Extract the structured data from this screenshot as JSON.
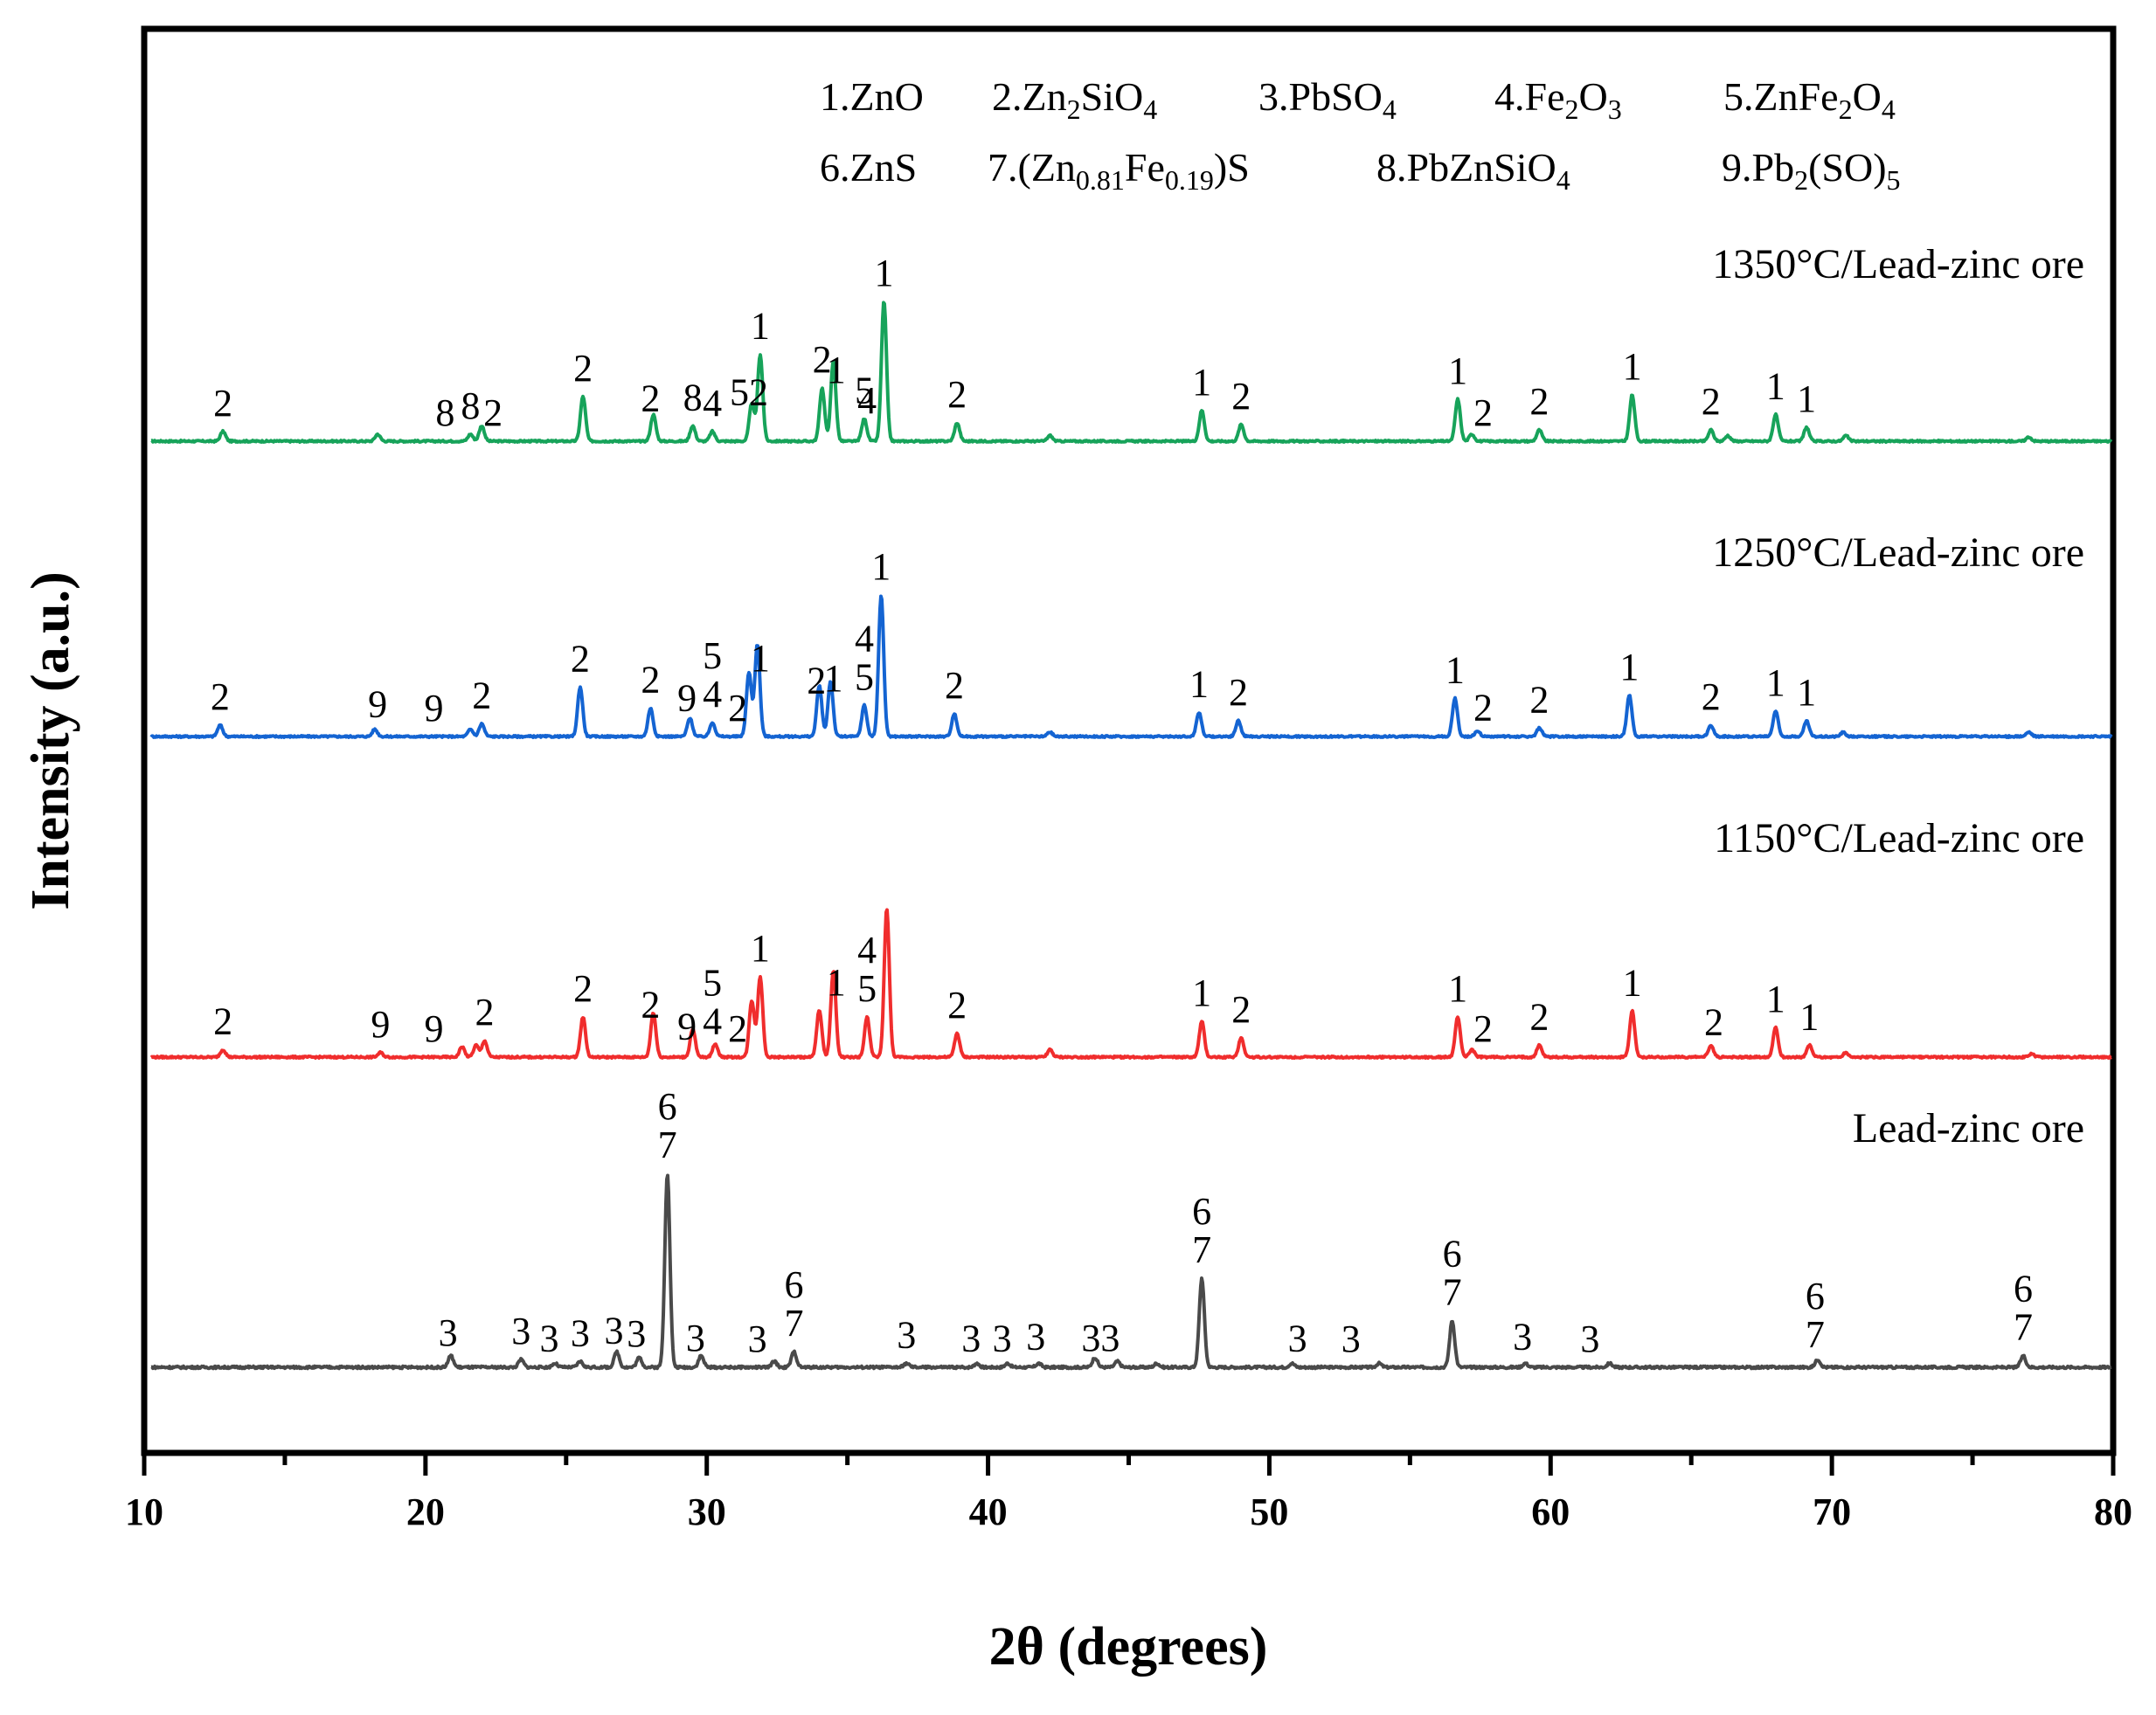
{
  "chart_data": {
    "type": "line",
    "title": "",
    "xlabel": "2θ (degrees)",
    "ylabel": "Intensity (a.u.)",
    "xlim": [
      10,
      80
    ],
    "xticks": [
      "10",
      "20",
      "30",
      "40",
      "50",
      "60",
      "70",
      "80"
    ],
    "legend": [
      {
        "num": "1.",
        "formula": [
          [
            "ZnO",
            ""
          ]
        ]
      },
      {
        "num": "2.",
        "formula": [
          [
            "Zn",
            ""
          ],
          [
            "2",
            "sub"
          ],
          [
            "SiO",
            ""
          ],
          [
            "4",
            "sub"
          ]
        ]
      },
      {
        "num": "3.",
        "formula": [
          [
            "PbSO",
            ""
          ],
          [
            "4",
            "sub"
          ]
        ]
      },
      {
        "num": "4.",
        "formula": [
          [
            "Fe",
            ""
          ],
          [
            "2",
            "sub"
          ],
          [
            "O",
            ""
          ],
          [
            "3",
            "sub"
          ]
        ]
      },
      {
        "num": "5.",
        "formula": [
          [
            "ZnFe",
            ""
          ],
          [
            "2",
            "sub"
          ],
          [
            "O",
            ""
          ],
          [
            "4",
            "sub"
          ]
        ]
      },
      {
        "num": "6.",
        "formula": [
          [
            "ZnS",
            ""
          ]
        ]
      },
      {
        "num": "7.",
        "formula": [
          [
            "(Zn",
            ""
          ],
          [
            "0.81",
            "sub"
          ],
          [
            "Fe",
            ""
          ],
          [
            "0.19",
            "sub"
          ],
          [
            ")S",
            ""
          ]
        ]
      },
      {
        "num": "8.",
        "formula": [
          [
            "PbZnSiO",
            ""
          ],
          [
            "4",
            "sub"
          ]
        ]
      },
      {
        "num": "9.",
        "formula": [
          [
            "Pb",
            ""
          ],
          [
            "2",
            "sub"
          ],
          [
            "(SO)",
            ""
          ],
          [
            "5",
            "sub"
          ]
        ]
      }
    ],
    "series": [
      {
        "name": "1350°C/Lead-zinc ore",
        "color": "#17a35a",
        "scale": 1.0,
        "peaks": [
          [
            12.8,
            0.07
          ],
          [
            18.3,
            0.05
          ],
          [
            21.6,
            0.05
          ],
          [
            22.0,
            0.11
          ],
          [
            25.6,
            0.32
          ],
          [
            28.1,
            0.19
          ],
          [
            29.5,
            0.11
          ],
          [
            30.2,
            0.07
          ],
          [
            31.6,
            0.27
          ],
          [
            31.9,
            0.62
          ],
          [
            34.1,
            0.38
          ],
          [
            34.5,
            0.57
          ],
          [
            35.6,
            0.16
          ],
          [
            36.3,
            1.0
          ],
          [
            38.9,
            0.13
          ],
          [
            42.2,
            0.04
          ],
          [
            47.6,
            0.22
          ],
          [
            49.0,
            0.12
          ],
          [
            56.7,
            0.3
          ],
          [
            57.2,
            0.05
          ],
          [
            59.6,
            0.08
          ],
          [
            62.9,
            0.33
          ],
          [
            65.7,
            0.08
          ],
          [
            66.3,
            0.04
          ],
          [
            68.0,
            0.19
          ],
          [
            69.1,
            0.1
          ],
          [
            70.5,
            0.04
          ],
          [
            77.0,
            0.03
          ]
        ],
        "labels": [
          [
            "2",
            12.8
          ],
          [
            "8",
            20.7
          ],
          [
            "8",
            21.6
          ],
          [
            "2",
            22.4
          ],
          [
            "2",
            25.6
          ],
          [
            "2",
            28.0
          ],
          [
            "8",
            29.5
          ],
          [
            "4",
            30.2
          ],
          [
            "52",
            31.5
          ],
          [
            "1",
            31.9
          ],
          [
            "2",
            34.1
          ],
          [
            "1",
            34.6
          ],
          [
            "5",
            35.6
          ],
          [
            "4",
            35.7
          ],
          [
            "1",
            36.3
          ],
          [
            "2",
            38.9
          ],
          [
            "1",
            47.6
          ],
          [
            "2",
            49.0
          ],
          [
            "1",
            56.7
          ],
          [
            "2",
            57.6
          ],
          [
            "2",
            59.6
          ],
          [
            "1",
            62.9
          ],
          [
            "2",
            65.7
          ],
          [
            "1",
            68.0
          ],
          [
            "1",
            69.1
          ]
        ]
      },
      {
        "name": "1250°C/Lead-zinc ore",
        "color": "#1464d2",
        "scale": 1.0,
        "peaks": [
          [
            12.7,
            0.08
          ],
          [
            18.2,
            0.05
          ],
          [
            21.6,
            0.05
          ],
          [
            22.0,
            0.09
          ],
          [
            25.5,
            0.35
          ],
          [
            28.0,
            0.2
          ],
          [
            29.4,
            0.13
          ],
          [
            30.2,
            0.1
          ],
          [
            31.5,
            0.45
          ],
          [
            31.8,
            0.65
          ],
          [
            34.0,
            0.36
          ],
          [
            34.4,
            0.39
          ],
          [
            35.6,
            0.22
          ],
          [
            36.2,
            1.0
          ],
          [
            38.8,
            0.16
          ],
          [
            42.2,
            0.03
          ],
          [
            47.5,
            0.17
          ],
          [
            48.9,
            0.11
          ],
          [
            56.6,
            0.27
          ],
          [
            57.4,
            0.04
          ],
          [
            59.6,
            0.06
          ],
          [
            62.8,
            0.29
          ],
          [
            65.7,
            0.08
          ],
          [
            68.0,
            0.18
          ],
          [
            69.1,
            0.11
          ],
          [
            70.4,
            0.03
          ],
          [
            77.0,
            0.03
          ]
        ],
        "labels": [
          [
            "2",
            12.7
          ],
          [
            "9",
            18.3
          ],
          [
            "9",
            20.3
          ],
          [
            "2",
            22.0
          ],
          [
            "2",
            25.5
          ],
          [
            "2",
            28.0
          ],
          [
            "9",
            29.3
          ],
          [
            "4",
            30.2
          ],
          [
            "5",
            30.2
          ],
          [
            "2",
            31.1
          ],
          [
            "1",
            31.9
          ],
          [
            "2",
            33.9
          ],
          [
            "1",
            34.5
          ],
          [
            "5",
            35.6
          ],
          [
            "4",
            35.6
          ],
          [
            "1",
            36.2
          ],
          [
            "2",
            38.8
          ],
          [
            "1",
            47.5
          ],
          [
            "2",
            48.9
          ],
          [
            "1",
            56.6
          ],
          [
            "2",
            57.6
          ],
          [
            "2",
            59.6
          ],
          [
            "1",
            62.8
          ],
          [
            "2",
            65.7
          ],
          [
            "1",
            68.0
          ],
          [
            "1",
            69.1
          ]
        ]
      },
      {
        "name": "1150°C/Lead-zinc ore",
        "color": "#f02d2d",
        "scale": 1.0,
        "peaks": [
          [
            12.8,
            0.05
          ],
          [
            18.4,
            0.03
          ],
          [
            21.3,
            0.07
          ],
          [
            21.8,
            0.08
          ],
          [
            22.1,
            0.11
          ],
          [
            25.6,
            0.27
          ],
          [
            28.1,
            0.3
          ],
          [
            29.5,
            0.19
          ],
          [
            30.3,
            0.09
          ],
          [
            31.6,
            0.38
          ],
          [
            31.9,
            0.54
          ],
          [
            34.0,
            0.32
          ],
          [
            34.5,
            0.58
          ],
          [
            35.7,
            0.27
          ],
          [
            36.4,
            1.0
          ],
          [
            38.9,
            0.16
          ],
          [
            42.2,
            0.05
          ],
          [
            47.6,
            0.24
          ],
          [
            49.0,
            0.13
          ],
          [
            56.7,
            0.27
          ],
          [
            57.2,
            0.05
          ],
          [
            59.6,
            0.08
          ],
          [
            62.9,
            0.31
          ],
          [
            65.7,
            0.08
          ],
          [
            68.0,
            0.2
          ],
          [
            69.2,
            0.08
          ],
          [
            70.5,
            0.03
          ],
          [
            77.1,
            0.02
          ]
        ],
        "labels": [
          [
            "2",
            12.8
          ],
          [
            "9",
            18.4
          ],
          [
            "9",
            20.3
          ],
          [
            "2",
            22.1
          ],
          [
            "2",
            25.6
          ],
          [
            "2",
            28.0
          ],
          [
            "9",
            29.3
          ],
          [
            "4",
            30.2
          ],
          [
            "5",
            30.2
          ],
          [
            "2",
            31.1
          ],
          [
            "1",
            31.9
          ],
          [
            "1",
            34.6
          ],
          [
            "5",
            35.7
          ],
          [
            "4",
            35.7
          ],
          [
            "2",
            38.9
          ],
          [
            "1",
            47.6
          ],
          [
            "2",
            49.0
          ],
          [
            "1",
            56.7
          ],
          [
            "2",
            57.6
          ],
          [
            "2",
            59.6
          ],
          [
            "1",
            62.9
          ],
          [
            "2",
            65.8
          ],
          [
            "1",
            68.0
          ],
          [
            "1",
            69.2
          ]
        ]
      },
      {
        "name": "Lead-zinc ore",
        "color": "#4a4a4a",
        "scale": 1.0,
        "peaks": [
          [
            20.9,
            0.06
          ],
          [
            23.4,
            0.04
          ],
          [
            24.6,
            0.02
          ],
          [
            25.5,
            0.03
          ],
          [
            26.8,
            0.08
          ],
          [
            27.6,
            0.05
          ],
          [
            28.6,
            1.0
          ],
          [
            29.8,
            0.06
          ],
          [
            32.4,
            0.03
          ],
          [
            33.1,
            0.08
          ],
          [
            37.1,
            0.02
          ],
          [
            39.6,
            0.02
          ],
          [
            40.7,
            0.02
          ],
          [
            41.8,
            0.02
          ],
          [
            43.8,
            0.05
          ],
          [
            44.6,
            0.03
          ],
          [
            46.0,
            0.02
          ],
          [
            47.6,
            0.46
          ],
          [
            50.8,
            0.02
          ],
          [
            53.9,
            0.02
          ],
          [
            56.5,
            0.24
          ],
          [
            59.1,
            0.02
          ],
          [
            62.1,
            0.02
          ],
          [
            69.5,
            0.04
          ],
          [
            76.8,
            0.06
          ]
        ],
        "labels": [
          [
            "3",
            20.8
          ],
          [
            "3",
            23.4
          ],
          [
            "3",
            24.4
          ],
          [
            "3",
            25.5
          ],
          [
            "3",
            26.7
          ],
          [
            "3",
            27.5
          ],
          [
            "7",
            28.6
          ],
          [
            "6",
            28.6
          ],
          [
            "3",
            29.6
          ],
          [
            "3",
            31.8
          ],
          [
            "7",
            33.1
          ],
          [
            "6",
            33.1
          ],
          [
            "3",
            37.1
          ],
          [
            "3",
            39.4
          ],
          [
            "3",
            40.5
          ],
          [
            "3",
            41.7
          ],
          [
            "33",
            44.0
          ],
          [
            "7",
            47.6
          ],
          [
            "6",
            47.6
          ],
          [
            "3",
            51.0
          ],
          [
            "3",
            52.9
          ],
          [
            "7",
            56.5
          ],
          [
            "6",
            56.5
          ],
          [
            "3",
            59.0
          ],
          [
            "3",
            61.4
          ],
          [
            "7",
            69.4
          ],
          [
            "6",
            69.4
          ],
          [
            "7",
            76.8
          ],
          [
            "6",
            76.8
          ]
        ]
      }
    ]
  }
}
